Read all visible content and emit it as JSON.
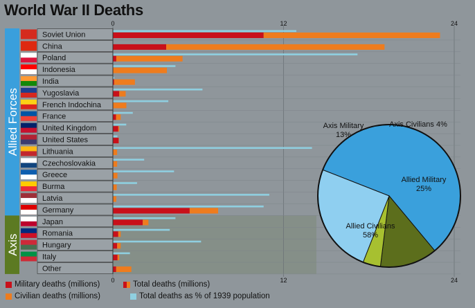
{
  "title": "World War II Deaths",
  "colors": {
    "military": "#c8101a",
    "civilian": "#ee7c1e",
    "percent": "#8fcfe0",
    "allied_band": "#3a9fdc",
    "axis_band": "#5c7a22",
    "axis_shade": "#7e8a78",
    "pie_allied_military": "#8fcff0",
    "pie_allied_civilians": "#3aa0dc",
    "pie_axis_military": "#5c6e1c",
    "pie_axis_civilians": "#a7c030"
  },
  "groups": [
    {
      "label": "Allied Forces",
      "rows": 16
    },
    {
      "label": "Axis",
      "rows": 5
    }
  ],
  "chart_data": [
    {
      "type": "bar",
      "title": "World War II Deaths",
      "categories": [
        "Soviet Union",
        "China",
        "Poland",
        "Indonesia",
        "India",
        "Yugoslavia",
        "French Indochina",
        "France",
        "United Kingdom",
        "United States",
        "Lithuania",
        "Czechoslovakia",
        "Greece",
        "Burma",
        "Latvia",
        "Germany",
        "Japan",
        "Romania",
        "Hungary",
        "Italy",
        "Other"
      ],
      "flags": [
        "soviet-union-flag",
        "china-flag",
        "poland-flag",
        "indonesia-flag",
        "india-flag",
        "yugoslavia-flag",
        "french-indochina-flag",
        "france-flag",
        "united-kingdom-flag",
        "united-states-flag",
        "lithuania-flag",
        "czechoslovakia-flag",
        "greece-flag",
        "burma-flag",
        "latvia-flag",
        "germany-flag",
        "japan-flag",
        "romania-flag",
        "hungary-flag",
        "italy-flag",
        "other-flag"
      ],
      "xlim": [
        0,
        24
      ],
      "x_ticks": [
        "0",
        "12",
        "24"
      ],
      "grid": true,
      "series": [
        {
          "name": "Military deaths (millions)",
          "values": [
            10.6,
            3.75,
            0.24,
            0,
            0.09,
            0.45,
            0,
            0.22,
            0.38,
            0.41,
            0.02,
            0.03,
            0.02,
            0.03,
            0.03,
            5.4,
            2.1,
            0.38,
            0.3,
            0.33,
            0.23
          ]
        },
        {
          "name": "Total deaths (millions)",
          "values": [
            23.0,
            19.1,
            4.9,
            3.8,
            1.55,
            0.9,
            0.95,
            0.55,
            0.45,
            0.42,
            0.3,
            0.3,
            0.32,
            0.27,
            0.24,
            7.4,
            2.5,
            0.55,
            0.55,
            0.45,
            1.3
          ]
        },
        {
          "name": "Civilian deaths (millions)",
          "values": [
            12.4,
            15.35,
            4.66,
            3.8,
            1.46,
            0.45,
            0.95,
            0.33,
            0.07,
            0.01,
            0.28,
            0.27,
            0.3,
            0.24,
            0.21,
            2.0,
            0.4,
            0.17,
            0.25,
            0.12,
            1.07
          ]
        },
        {
          "name": "Total deaths as % of 1939 population",
          "values": [
            12.9,
            null,
            17.2,
            4.4,
            0.1,
            6.3,
            3.9,
            1.4,
            0.94,
            0.32,
            14.0,
            2.2,
            4.3,
            1.7,
            11.0,
            10.6,
            4.4,
            4.0,
            6.2,
            1.2,
            null
          ]
        }
      ]
    },
    {
      "type": "pie",
      "labels": [
        "Allied Civilians",
        "Allied Military",
        "Axis Civilians",
        "Axis Military"
      ],
      "values": [
        58,
        25,
        4,
        13
      ],
      "value_labels": [
        "58%",
        "25%",
        "4%",
        "13%"
      ]
    }
  ],
  "legend": {
    "military": "Military deaths (millions)",
    "total": "Total deaths (millions)",
    "civilian": "Civilian deaths (millions)",
    "percent": "Total deaths as % of 1939 population"
  }
}
